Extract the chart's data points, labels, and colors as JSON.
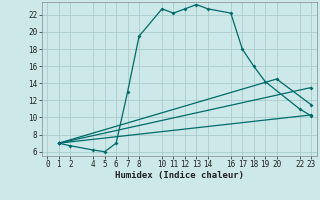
{
  "xlabel": "Humidex (Indice chaleur)",
  "bg_color": "#cce8e8",
  "grid_color": "#aacccc",
  "line_color": "#006b6b",
  "xlim": [
    -0.5,
    23.5
  ],
  "ylim": [
    5.5,
    23.5
  ],
  "xticks": [
    0,
    1,
    2,
    4,
    5,
    6,
    7,
    8,
    10,
    11,
    12,
    13,
    14,
    16,
    17,
    18,
    19,
    20,
    22,
    23
  ],
  "yticks": [
    6,
    8,
    10,
    12,
    14,
    16,
    18,
    20,
    22
  ],
  "xlabel_fontsize": 6.5,
  "tick_fontsize": 5.5,
  "line1_x": [
    1,
    2,
    4,
    5,
    6,
    7,
    8,
    10,
    11,
    12,
    13,
    14,
    16,
    17,
    18,
    19,
    22,
    23
  ],
  "line1_y": [
    7,
    6.7,
    6.2,
    6.0,
    7.0,
    13.0,
    19.5,
    22.7,
    22.2,
    22.7,
    23.2,
    22.7,
    22.2,
    18.0,
    16.0,
    14.2,
    11.0,
    10.2
  ],
  "line2_x": [
    1,
    23
  ],
  "line2_y": [
    7,
    13.5
  ],
  "line3_x": [
    1,
    23
  ],
  "line3_y": [
    7,
    10.3
  ],
  "line4_x": [
    1,
    20,
    23
  ],
  "line4_y": [
    7,
    14.5,
    11.5
  ]
}
